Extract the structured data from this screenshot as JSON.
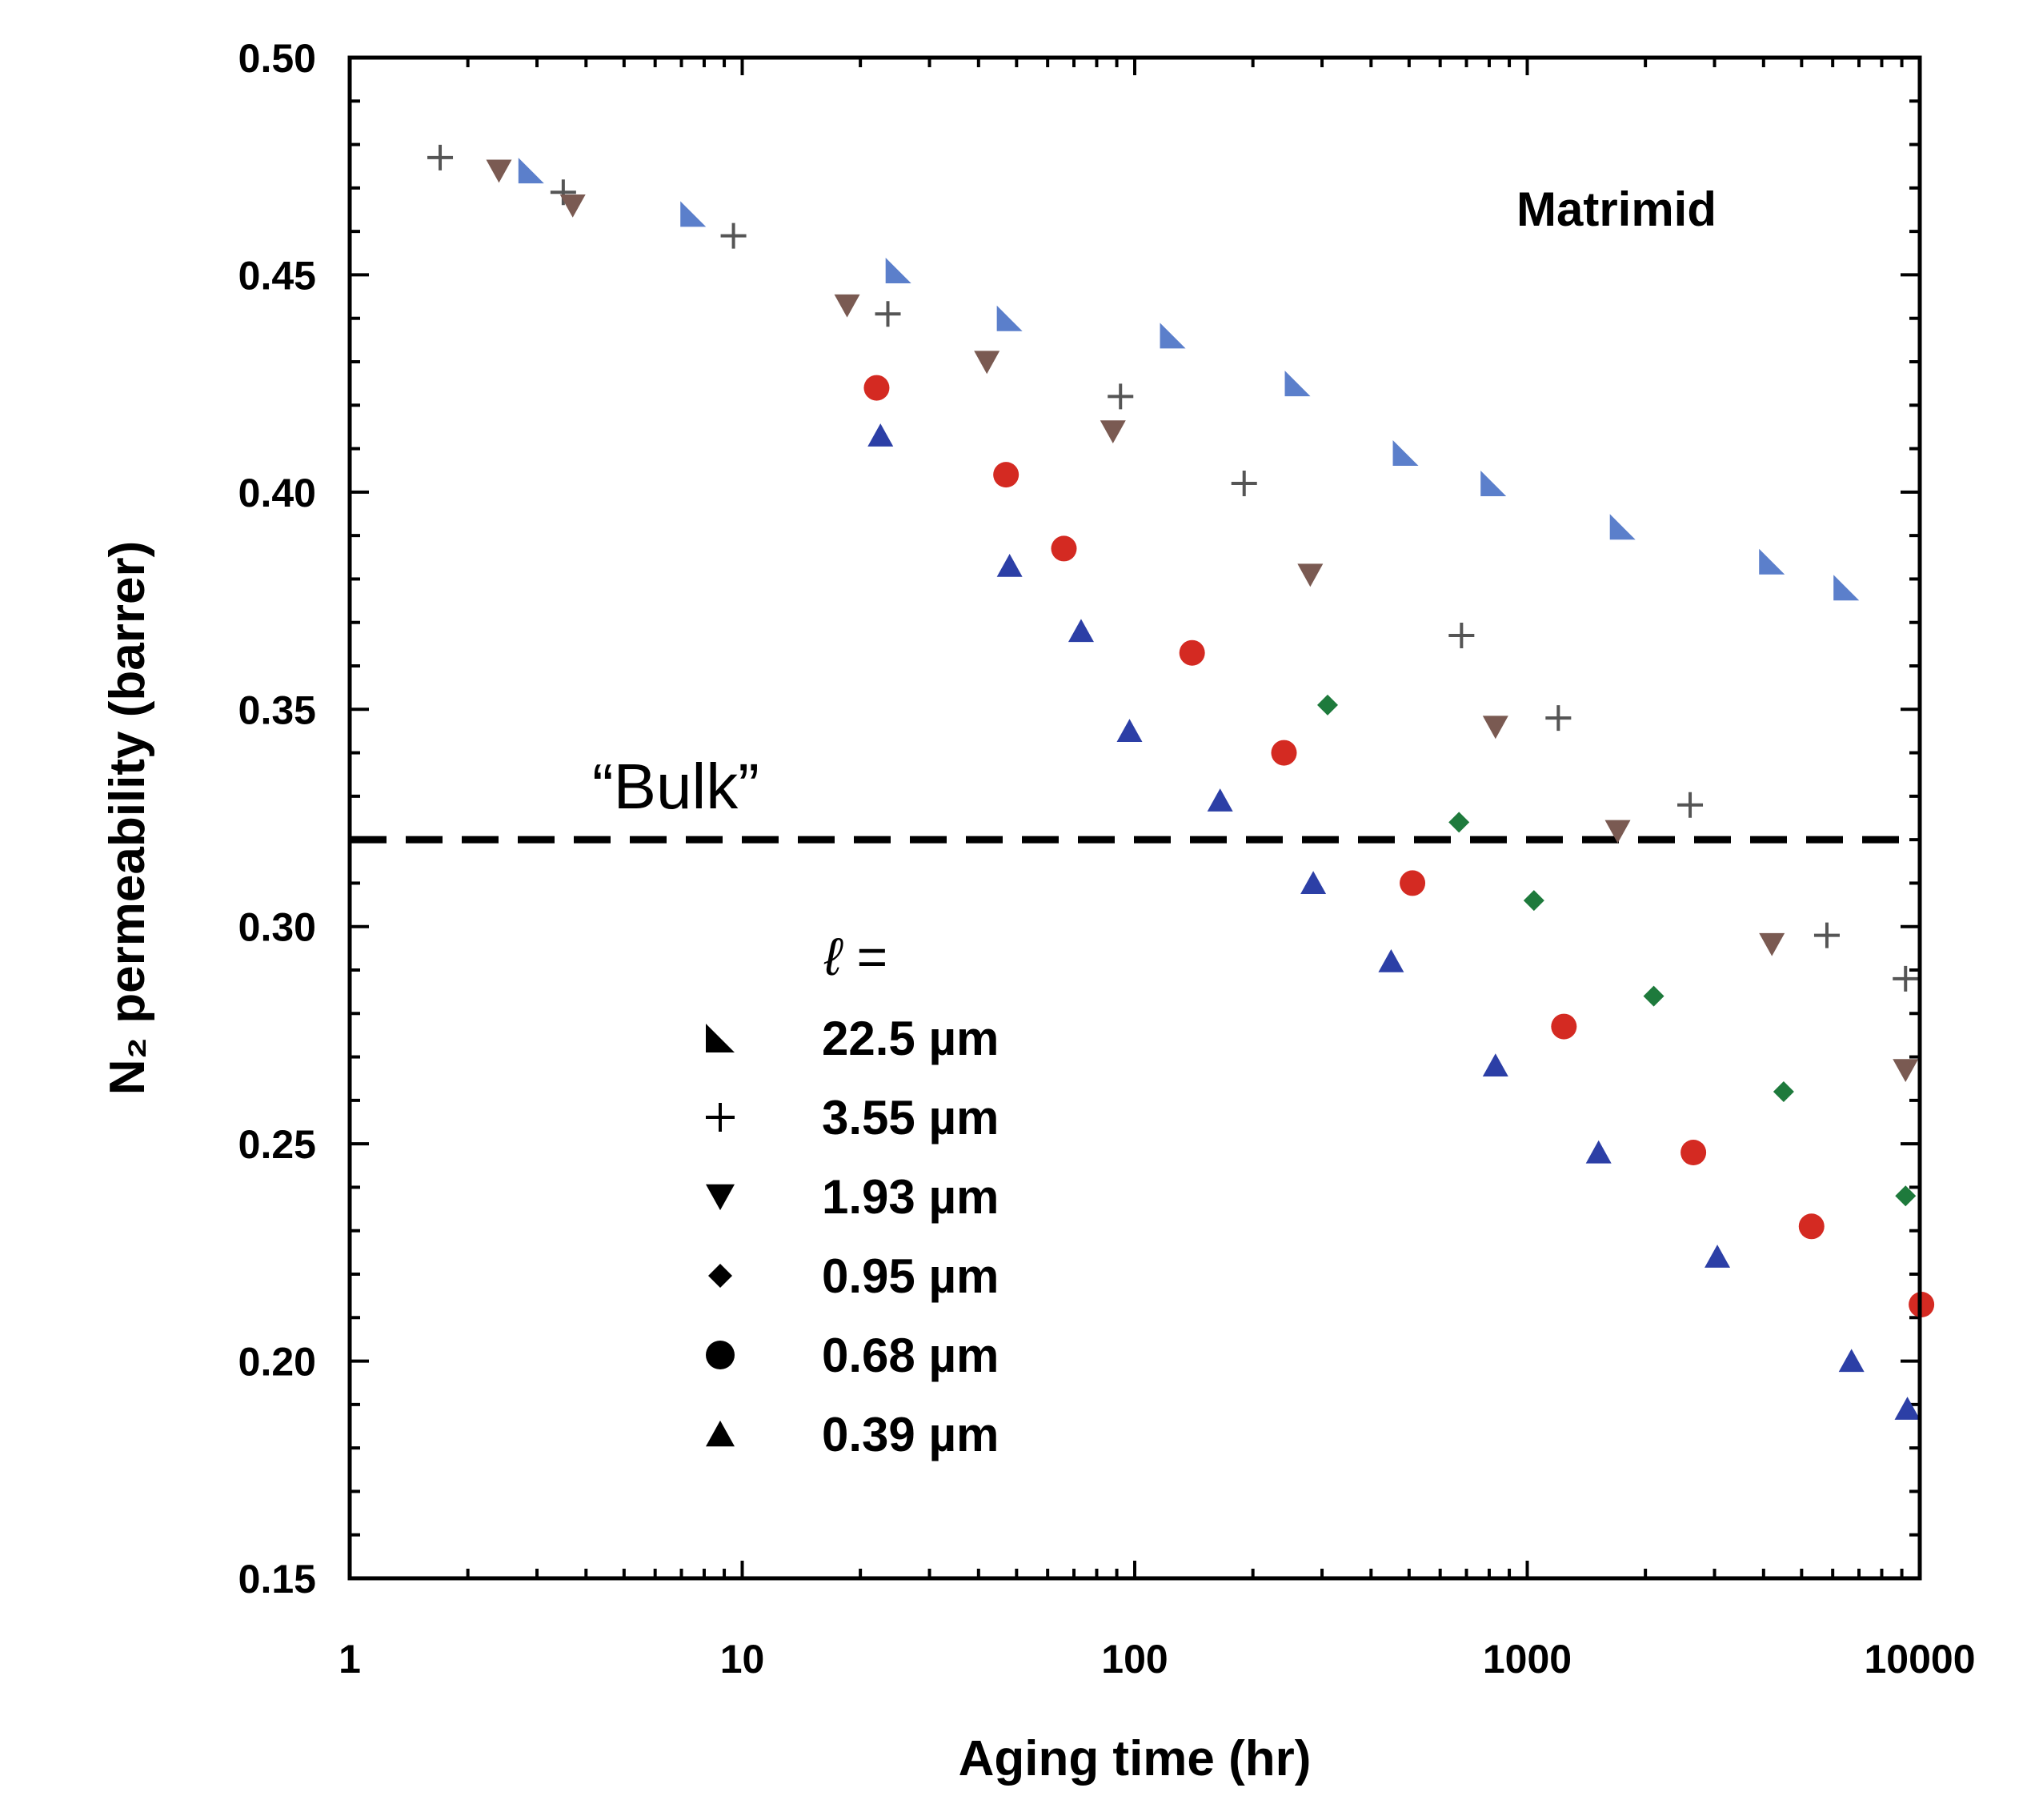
{
  "chart_data": {
    "type": "scatter",
    "title": "Matrimid",
    "xlabel": "Aging time (hr)",
    "ylabel": "N₂ permeability (barrer)",
    "xscale": "log",
    "xlim": [
      1,
      10000
    ],
    "ylim": [
      0.15,
      0.5
    ],
    "x_ticks": [
      1,
      10,
      100,
      1000,
      10000
    ],
    "x_tick_labels": [
      "1",
      "10",
      "100",
      "1000",
      "10000"
    ],
    "y_ticks": [
      0.15,
      0.2,
      0.25,
      0.3,
      0.35,
      0.4,
      0.45,
      0.5
    ],
    "y_tick_labels": [
      "0.15",
      "0.20",
      "0.25",
      "0.30",
      "0.35",
      "0.40",
      "0.45",
      "0.50"
    ],
    "reference_line": {
      "label": "“Bulk”",
      "y": 0.32,
      "style": "dashed"
    },
    "legend_title": "ℓ =",
    "legend_position": "center-left",
    "series": [
      {
        "name": "22.5 µm",
        "marker": "right-triangle",
        "color": "#5B7FCB",
        "x": [
          2.9,
          7.5,
          25,
          48,
          125,
          260,
          490,
          820,
          1750,
          4200,
          6500
        ],
        "y": [
          0.474,
          0.464,
          0.451,
          0.44,
          0.436,
          0.425,
          0.409,
          0.402,
          0.392,
          0.384,
          0.378
        ]
      },
      {
        "name": "3.55 µm",
        "marker": "plus",
        "color": "#555555",
        "x": [
          1.7,
          3.5,
          9.5,
          23.5,
          92,
          190,
          680,
          1200,
          2600,
          5800,
          9200
        ],
        "y": [
          0.477,
          0.469,
          0.459,
          0.441,
          0.422,
          0.402,
          0.367,
          0.348,
          0.328,
          0.298,
          0.288
        ]
      },
      {
        "name": "1.93 µm",
        "marker": "triangle-down",
        "color": "#7A5A52",
        "x": [
          2.4,
          3.7,
          18.5,
          42,
          88,
          280,
          830,
          1700,
          4200,
          9200
        ],
        "y": [
          0.474,
          0.466,
          0.443,
          0.43,
          0.414,
          0.381,
          0.346,
          0.322,
          0.296,
          0.267
        ]
      },
      {
        "name": "0.95 µm",
        "marker": "diamond",
        "color": "#1E7A3C",
        "x": [
          310,
          670,
          1040,
          2100,
          4500,
          9200
        ],
        "y": [
          0.351,
          0.324,
          0.306,
          0.284,
          0.262,
          0.238
        ]
      },
      {
        "name": "0.68 µm",
        "marker": "circle",
        "color": "#D42A22",
        "x": [
          22,
          47,
          66,
          140,
          240,
          510,
          1240,
          2650,
          5300,
          10100
        ],
        "y": [
          0.424,
          0.404,
          0.387,
          0.363,
          0.34,
          0.31,
          0.277,
          0.248,
          0.231,
          0.213
        ]
      },
      {
        "name": "0.39 µm",
        "marker": "triangle-up",
        "color": "#2C3FA6",
        "x": [
          22.5,
          48,
          73,
          97,
          165,
          285,
          450,
          830,
          1520,
          3050,
          6700,
          9300
        ],
        "y": [
          0.413,
          0.383,
          0.368,
          0.345,
          0.329,
          0.31,
          0.292,
          0.268,
          0.248,
          0.224,
          0.2,
          0.189
        ]
      }
    ]
  }
}
